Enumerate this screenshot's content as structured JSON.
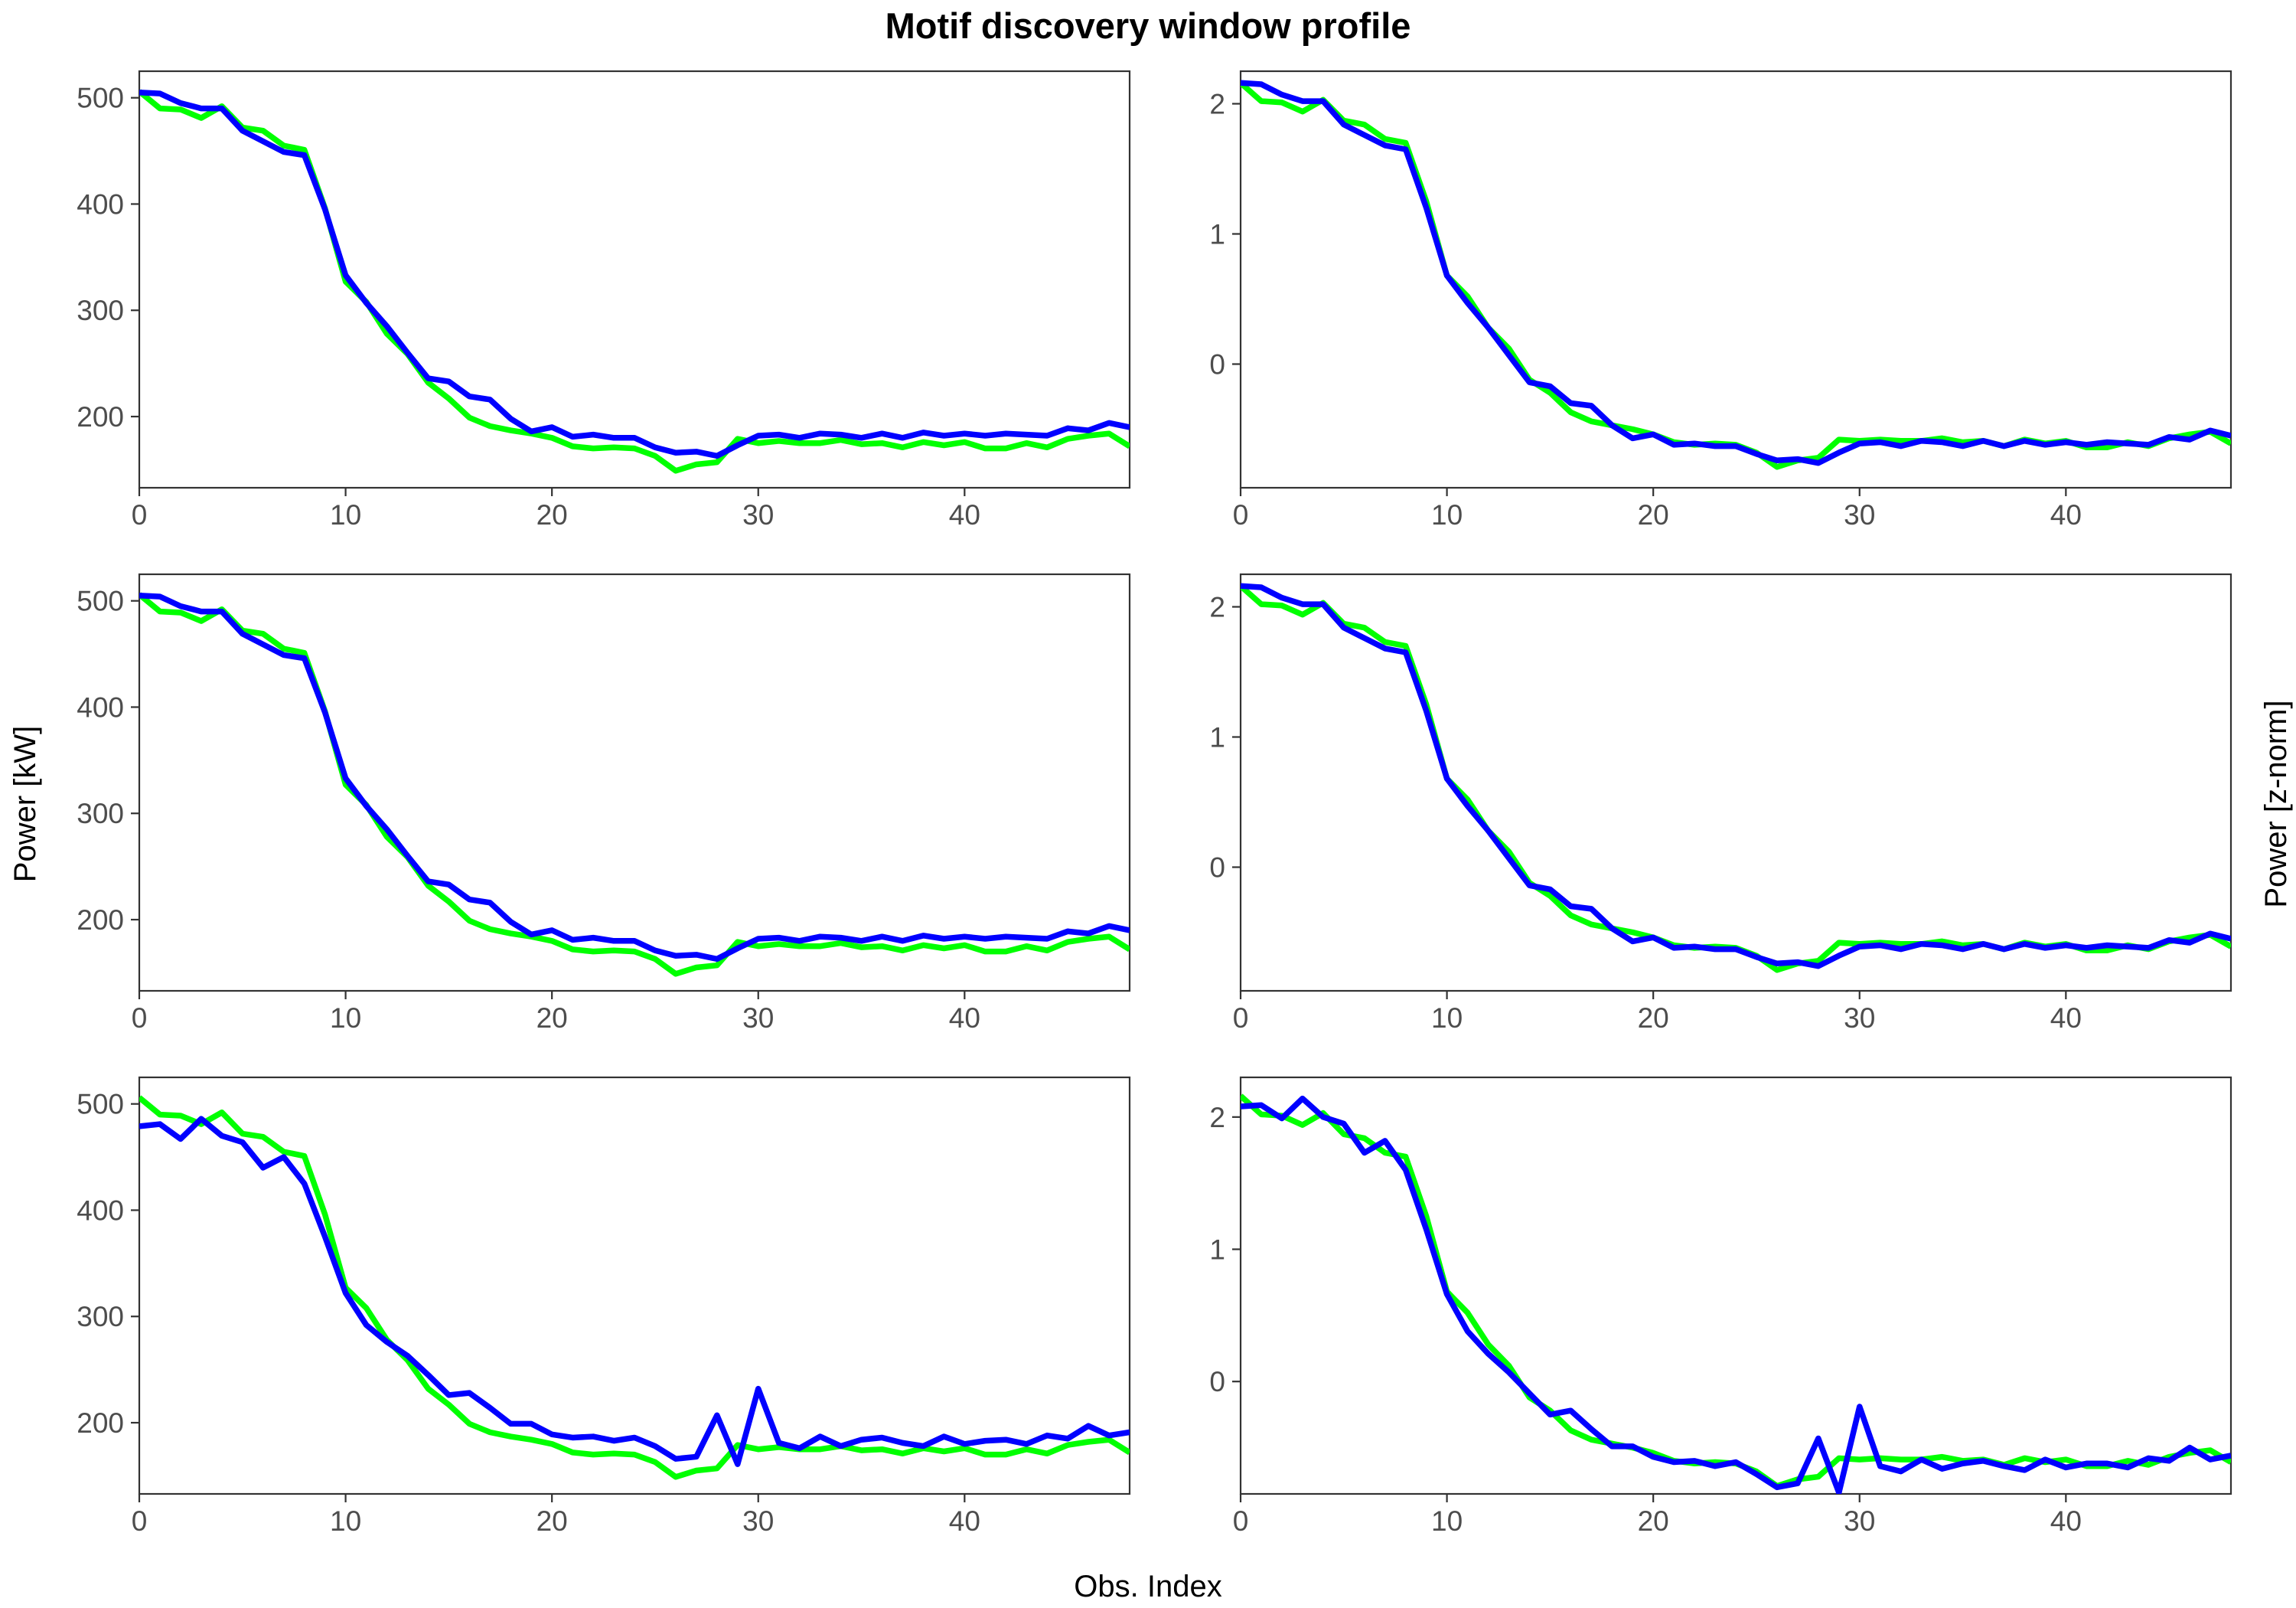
{
  "figure": {
    "title": "Motif discovery window profile",
    "xlabel": "Obs. Index",
    "ylabel_left": "Power [kW]",
    "ylabel_right": "Power [z-norm]"
  },
  "colors": {
    "series_a": "#00ff00",
    "series_b": "#0000ff"
  },
  "chart_data": [
    {
      "type": "line",
      "panel": "row1-left",
      "x": [
        0,
        1,
        2,
        3,
        4,
        5,
        6,
        7,
        8,
        9,
        10,
        11,
        12,
        13,
        14,
        15,
        16,
        17,
        18,
        19,
        20,
        21,
        22,
        23,
        24,
        25,
        26,
        27,
        28,
        29,
        30,
        31,
        32,
        33,
        34,
        35,
        36,
        37,
        38,
        39,
        40,
        41,
        42,
        43,
        44,
        45,
        46,
        47,
        48
      ],
      "xlim": [
        0,
        48
      ],
      "xticks": [
        0,
        10,
        20,
        30,
        40
      ],
      "ylim": [
        133,
        525
      ],
      "yticks": [
        200,
        300,
        400,
        500
      ],
      "series": [
        {
          "color": "green",
          "values": [
            506,
            490,
            489,
            481,
            492,
            472,
            469,
            455,
            451,
            396,
            327,
            308,
            278,
            259,
            232,
            217,
            199,
            191,
            187,
            184,
            180,
            172,
            170,
            171,
            170,
            163,
            149,
            155,
            157,
            179,
            175,
            177,
            175,
            175,
            178,
            174,
            175,
            171,
            176,
            173,
            176,
            170,
            170,
            175,
            171,
            179,
            182,
            184,
            172
          ]
        },
        {
          "color": "blue",
          "values": [
            505,
            504,
            495,
            490,
            490,
            469,
            459,
            449,
            446,
            395,
            333,
            307,
            285,
            260,
            236,
            233,
            219,
            216,
            198,
            186,
            190,
            181,
            183,
            180,
            180,
            171,
            166,
            167,
            163,
            173,
            182,
            183,
            180,
            184,
            183,
            180,
            184,
            180,
            185,
            182,
            184,
            182,
            184,
            183,
            182,
            189,
            187,
            194,
            190
          ]
        }
      ]
    },
    {
      "type": "line",
      "panel": "row1-right",
      "x": [
        0,
        1,
        2,
        3,
        4,
        5,
        6,
        7,
        8,
        9,
        10,
        11,
        12,
        13,
        14,
        15,
        16,
        17,
        18,
        19,
        20,
        21,
        22,
        23,
        24,
        25,
        26,
        27,
        28,
        29,
        30,
        31,
        32,
        33,
        34,
        35,
        36,
        37,
        38,
        39,
        40,
        41,
        42,
        43,
        44,
        45,
        46,
        47,
        48
      ],
      "xlim": [
        0,
        48
      ],
      "xticks": [
        0,
        10,
        20,
        30,
        40
      ],
      "ylim": [
        -0.95,
        2.25
      ],
      "yticks": [
        0,
        1,
        2
      ],
      "series": [
        {
          "color": "green",
          "values": [
            2.16,
            2.02,
            2.01,
            1.94,
            2.03,
            1.87,
            1.84,
            1.73,
            1.7,
            1.25,
            0.68,
            0.52,
            0.28,
            0.12,
            -0.12,
            -0.22,
            -0.37,
            -0.44,
            -0.47,
            -0.5,
            -0.54,
            -0.6,
            -0.62,
            -0.61,
            -0.62,
            -0.68,
            -0.79,
            -0.74,
            -0.72,
            -0.58,
            -0.59,
            -0.58,
            -0.59,
            -0.59,
            -0.57,
            -0.6,
            -0.59,
            -0.63,
            -0.58,
            -0.61,
            -0.59,
            -0.64,
            -0.64,
            -0.6,
            -0.63,
            -0.57,
            -0.54,
            -0.52,
            -0.61
          ]
        },
        {
          "color": "blue",
          "values": [
            2.16,
            2.15,
            2.07,
            2.02,
            2.02,
            1.84,
            1.76,
            1.68,
            1.65,
            1.2,
            0.68,
            0.47,
            0.28,
            0.07,
            -0.14,
            -0.17,
            -0.3,
            -0.32,
            -0.47,
            -0.57,
            -0.54,
            -0.62,
            -0.61,
            -0.63,
            -0.63,
            -0.69,
            -0.74,
            -0.73,
            -0.76,
            -0.68,
            -0.61,
            -0.6,
            -0.63,
            -0.59,
            -0.6,
            -0.63,
            -0.59,
            -0.63,
            -0.59,
            -0.62,
            -0.6,
            -0.62,
            -0.6,
            -0.61,
            -0.62,
            -0.56,
            -0.58,
            -0.51,
            -0.55
          ]
        }
      ]
    },
    {
      "type": "line",
      "panel": "row2-left",
      "x": [
        0,
        1,
        2,
        3,
        4,
        5,
        6,
        7,
        8,
        9,
        10,
        11,
        12,
        13,
        14,
        15,
        16,
        17,
        18,
        19,
        20,
        21,
        22,
        23,
        24,
        25,
        26,
        27,
        28,
        29,
        30,
        31,
        32,
        33,
        34,
        35,
        36,
        37,
        38,
        39,
        40,
        41,
        42,
        43,
        44,
        45,
        46,
        47,
        48
      ],
      "xlim": [
        0,
        48
      ],
      "xticks": [
        0,
        10,
        20,
        30,
        40
      ],
      "ylim": [
        133,
        525
      ],
      "yticks": [
        200,
        300,
        400,
        500
      ],
      "series": [
        {
          "color": "green",
          "values": [
            506,
            490,
            489,
            481,
            492,
            472,
            469,
            455,
            451,
            396,
            327,
            308,
            278,
            259,
            232,
            217,
            199,
            191,
            187,
            184,
            180,
            172,
            170,
            171,
            170,
            163,
            149,
            155,
            157,
            179,
            175,
            177,
            175,
            175,
            178,
            174,
            175,
            171,
            176,
            173,
            176,
            170,
            170,
            175,
            171,
            179,
            182,
            184,
            172
          ]
        },
        {
          "color": "blue",
          "values": [
            505,
            504,
            495,
            490,
            490,
            469,
            459,
            449,
            446,
            395,
            333,
            307,
            285,
            260,
            236,
            233,
            219,
            216,
            198,
            186,
            190,
            181,
            183,
            180,
            180,
            171,
            166,
            167,
            163,
            173,
            182,
            183,
            180,
            184,
            183,
            180,
            184,
            180,
            185,
            182,
            184,
            182,
            184,
            183,
            182,
            189,
            187,
            194,
            190
          ]
        }
      ]
    },
    {
      "type": "line",
      "panel": "row2-right",
      "x": [
        0,
        1,
        2,
        3,
        4,
        5,
        6,
        7,
        8,
        9,
        10,
        11,
        12,
        13,
        14,
        15,
        16,
        17,
        18,
        19,
        20,
        21,
        22,
        23,
        24,
        25,
        26,
        27,
        28,
        29,
        30,
        31,
        32,
        33,
        34,
        35,
        36,
        37,
        38,
        39,
        40,
        41,
        42,
        43,
        44,
        45,
        46,
        47,
        48
      ],
      "xlim": [
        0,
        48
      ],
      "xticks": [
        0,
        10,
        20,
        30,
        40
      ],
      "ylim": [
        -0.95,
        2.25
      ],
      "yticks": [
        0,
        1,
        2
      ],
      "series": [
        {
          "color": "green",
          "values": [
            2.16,
            2.02,
            2.01,
            1.94,
            2.03,
            1.87,
            1.84,
            1.73,
            1.7,
            1.25,
            0.68,
            0.52,
            0.28,
            0.12,
            -0.12,
            -0.22,
            -0.37,
            -0.44,
            -0.47,
            -0.5,
            -0.54,
            -0.6,
            -0.62,
            -0.61,
            -0.62,
            -0.68,
            -0.79,
            -0.74,
            -0.72,
            -0.58,
            -0.59,
            -0.58,
            -0.59,
            -0.59,
            -0.57,
            -0.6,
            -0.59,
            -0.63,
            -0.58,
            -0.61,
            -0.59,
            -0.64,
            -0.64,
            -0.6,
            -0.63,
            -0.57,
            -0.54,
            -0.52,
            -0.61
          ]
        },
        {
          "color": "blue",
          "values": [
            2.16,
            2.15,
            2.07,
            2.02,
            2.02,
            1.84,
            1.76,
            1.68,
            1.65,
            1.2,
            0.68,
            0.47,
            0.28,
            0.07,
            -0.14,
            -0.17,
            -0.3,
            -0.32,
            -0.47,
            -0.57,
            -0.54,
            -0.62,
            -0.61,
            -0.63,
            -0.63,
            -0.69,
            -0.74,
            -0.73,
            -0.76,
            -0.68,
            -0.61,
            -0.6,
            -0.63,
            -0.59,
            -0.6,
            -0.63,
            -0.59,
            -0.63,
            -0.59,
            -0.62,
            -0.6,
            -0.62,
            -0.6,
            -0.61,
            -0.62,
            -0.56,
            -0.58,
            -0.51,
            -0.55
          ]
        }
      ]
    },
    {
      "type": "line",
      "panel": "row3-left",
      "x": [
        0,
        1,
        2,
        3,
        4,
        5,
        6,
        7,
        8,
        9,
        10,
        11,
        12,
        13,
        14,
        15,
        16,
        17,
        18,
        19,
        20,
        21,
        22,
        23,
        24,
        25,
        26,
        27,
        28,
        29,
        30,
        31,
        32,
        33,
        34,
        35,
        36,
        37,
        38,
        39,
        40,
        41,
        42,
        43,
        44,
        45,
        46,
        47,
        48
      ],
      "xlim": [
        0,
        48
      ],
      "xticks": [
        0,
        10,
        20,
        30,
        40
      ],
      "ylim": [
        133,
        525
      ],
      "yticks": [
        200,
        300,
        400,
        500
      ],
      "series": [
        {
          "color": "green",
          "values": [
            506,
            490,
            489,
            481,
            492,
            472,
            469,
            455,
            451,
            396,
            327,
            308,
            278,
            259,
            232,
            217,
            199,
            191,
            187,
            184,
            180,
            172,
            170,
            171,
            170,
            163,
            149,
            155,
            157,
            179,
            175,
            177,
            175,
            175,
            178,
            174,
            175,
            171,
            176,
            173,
            176,
            170,
            170,
            175,
            171,
            179,
            182,
            184,
            172
          ]
        },
        {
          "color": "blue",
          "values": [
            479,
            481,
            467,
            486,
            470,
            464,
            440,
            450,
            425,
            375,
            322,
            292,
            276,
            263,
            245,
            226,
            228,
            214,
            199,
            199,
            189,
            186,
            187,
            183,
            186,
            178,
            166,
            168,
            207,
            161,
            232,
            181,
            176,
            187,
            178,
            184,
            186,
            181,
            178,
            187,
            180,
            183,
            184,
            180,
            188,
            185,
            197,
            188,
            191
          ]
        }
      ]
    },
    {
      "type": "line",
      "panel": "row3-right",
      "x": [
        0,
        1,
        2,
        3,
        4,
        5,
        6,
        7,
        8,
        9,
        10,
        11,
        12,
        13,
        14,
        15,
        16,
        17,
        18,
        19,
        20,
        21,
        22,
        23,
        24,
        25,
        26,
        27,
        28,
        29,
        30,
        31,
        32,
        33,
        34,
        35,
        36,
        37,
        38,
        39,
        40,
        41,
        42,
        43,
        44,
        45,
        46,
        47,
        48
      ],
      "xlim": [
        0,
        48
      ],
      "xticks": [
        0,
        10,
        20,
        30,
        40
      ],
      "ylim": [
        -0.85,
        2.3
      ],
      "yticks": [
        0,
        1,
        2
      ],
      "series": [
        {
          "color": "green",
          "values": [
            2.16,
            2.02,
            2.01,
            1.94,
            2.03,
            1.87,
            1.84,
            1.73,
            1.7,
            1.25,
            0.68,
            0.52,
            0.28,
            0.12,
            -0.12,
            -0.22,
            -0.37,
            -0.44,
            -0.47,
            -0.5,
            -0.54,
            -0.6,
            -0.62,
            -0.61,
            -0.62,
            -0.68,
            -0.79,
            -0.74,
            -0.72,
            -0.58,
            -0.59,
            -0.58,
            -0.59,
            -0.59,
            -0.57,
            -0.6,
            -0.59,
            -0.63,
            -0.58,
            -0.61,
            -0.59,
            -0.64,
            -0.64,
            -0.6,
            -0.63,
            -0.57,
            -0.54,
            -0.52,
            -0.61
          ]
        },
        {
          "color": "blue",
          "values": [
            2.08,
            2.09,
            1.99,
            2.14,
            2.0,
            1.95,
            1.73,
            1.82,
            1.6,
            1.15,
            0.66,
            0.38,
            0.21,
            0.07,
            -0.09,
            -0.25,
            -0.22,
            -0.36,
            -0.49,
            -0.49,
            -0.57,
            -0.61,
            -0.6,
            -0.64,
            -0.61,
            -0.7,
            -0.8,
            -0.77,
            -0.43,
            -0.84,
            -0.19,
            -0.64,
            -0.68,
            -0.59,
            -0.66,
            -0.62,
            -0.6,
            -0.64,
            -0.67,
            -0.59,
            -0.65,
            -0.62,
            -0.62,
            -0.65,
            -0.58,
            -0.6,
            -0.5,
            -0.59,
            -0.56
          ]
        }
      ]
    }
  ]
}
